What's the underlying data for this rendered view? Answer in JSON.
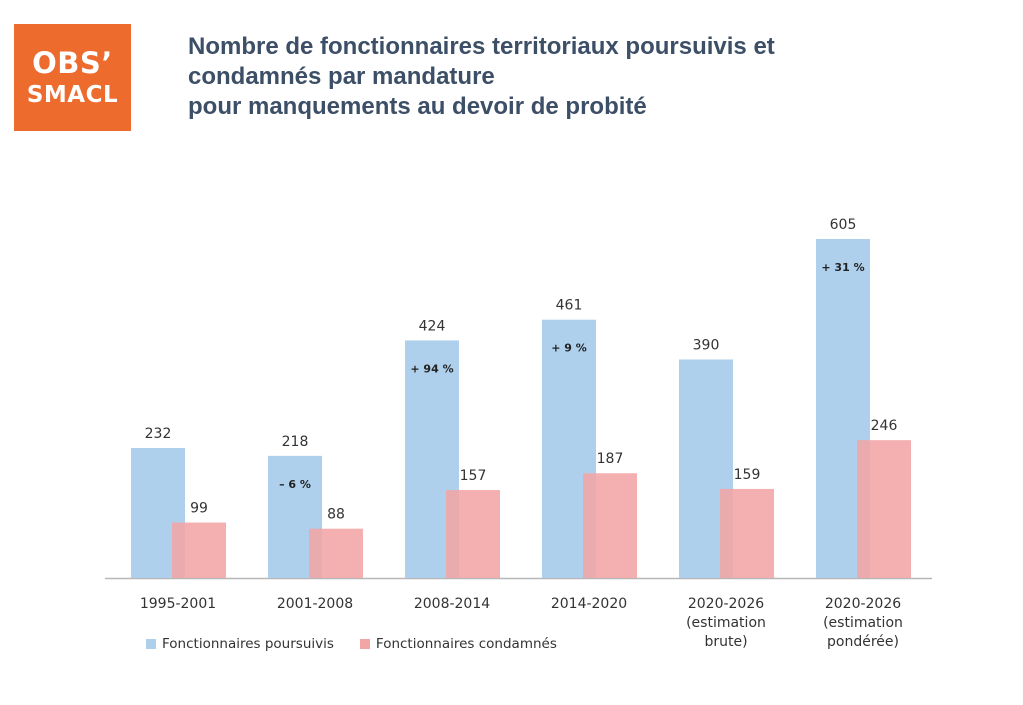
{
  "logo": {
    "line1": "OBS’",
    "line2": "SMACL"
  },
  "title_lines": [
    "Nombre de fonctionnaires territoriaux poursuivis et",
    "condamnés par mandature",
    "pour manquements au devoir de probité"
  ],
  "colors": {
    "series_poursuivis": "#aed0ed",
    "series_condamnes": "#f2a5a5",
    "title": "#3c4f66",
    "logo_bg": "#ec6b2d"
  },
  "chart_data": {
    "type": "bar",
    "categories": [
      [
        "1995-2001"
      ],
      [
        "2001-2008"
      ],
      [
        "2008-2014"
      ],
      [
        "2014-2020"
      ],
      [
        "2020-2026",
        "(estimation",
        "brute)"
      ],
      [
        "2020-2026",
        "(estimation",
        "pondérée)"
      ]
    ],
    "series": [
      {
        "name": "Fonctionnaires poursuivis",
        "values": [
          232,
          218,
          424,
          461,
          390,
          605
        ]
      },
      {
        "name": "Fonctionnaires condamnés",
        "values": [
          99,
          88,
          157,
          187,
          159,
          246
        ]
      }
    ],
    "value_labels": [
      [
        "232",
        "218",
        "424",
        "461",
        "390",
        "605"
      ],
      [
        "99",
        "88",
        "157",
        "187",
        "159",
        "246"
      ]
    ],
    "annotations": [
      "",
      "– 6 %",
      "+ 94 %",
      "+ 9 %",
      "",
      "+ 31 %"
    ],
    "ylim": [
      0,
      605
    ],
    "grid": false,
    "legend_position": "bottom-left"
  }
}
